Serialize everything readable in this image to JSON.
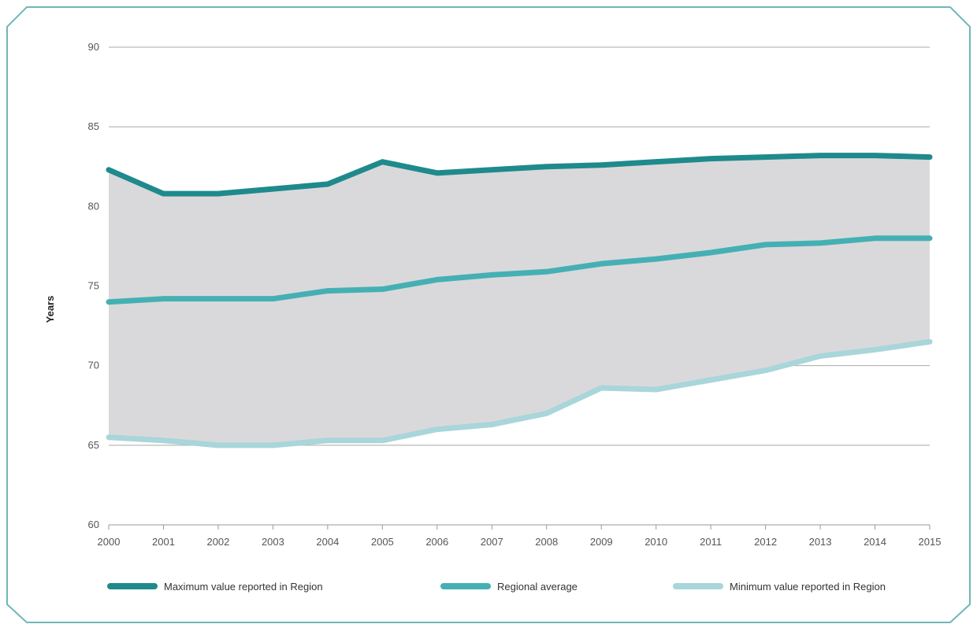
{
  "chart_data": {
    "type": "line",
    "title": "",
    "xlabel": "",
    "ylabel": "Years",
    "ylim": [
      60,
      90
    ],
    "yticks": [
      "90",
      "85",
      "80",
      "75",
      "70",
      "65",
      "60"
    ],
    "x": [
      "2000",
      "2001",
      "2002",
      "2003",
      "2004",
      "2005",
      "2006",
      "2007",
      "2008",
      "2009",
      "2010",
      "2011",
      "2012",
      "2013",
      "2014",
      "2015"
    ],
    "grid": true,
    "legend_position": "bottom",
    "shaded_band": {
      "between": [
        "Maximum value reported in Region",
        "Minimum value reported in Region"
      ],
      "color": "#d9d9db"
    },
    "series": [
      {
        "name": "Maximum value reported in Region",
        "color": "#1f8a8c",
        "values": [
          82.3,
          80.8,
          80.8,
          81.1,
          81.4,
          82.8,
          82.1,
          82.3,
          82.5,
          82.6,
          82.8,
          83.0,
          83.1,
          83.2,
          83.2,
          83.1
        ]
      },
      {
        "name": "Regional average",
        "color": "#45b0b3",
        "values": [
          74.0,
          74.2,
          74.2,
          74.2,
          74.7,
          74.8,
          75.4,
          75.7,
          75.9,
          76.4,
          76.7,
          77.1,
          77.6,
          77.7,
          78.0,
          78.0
        ]
      },
      {
        "name": "Minimum value reported in Region",
        "color": "#a8d6da",
        "values": [
          65.5,
          65.3,
          65.0,
          65.0,
          65.3,
          65.3,
          66.0,
          66.3,
          67.0,
          68.6,
          68.5,
          69.1,
          69.7,
          70.6,
          71.0,
          71.5
        ]
      }
    ]
  }
}
